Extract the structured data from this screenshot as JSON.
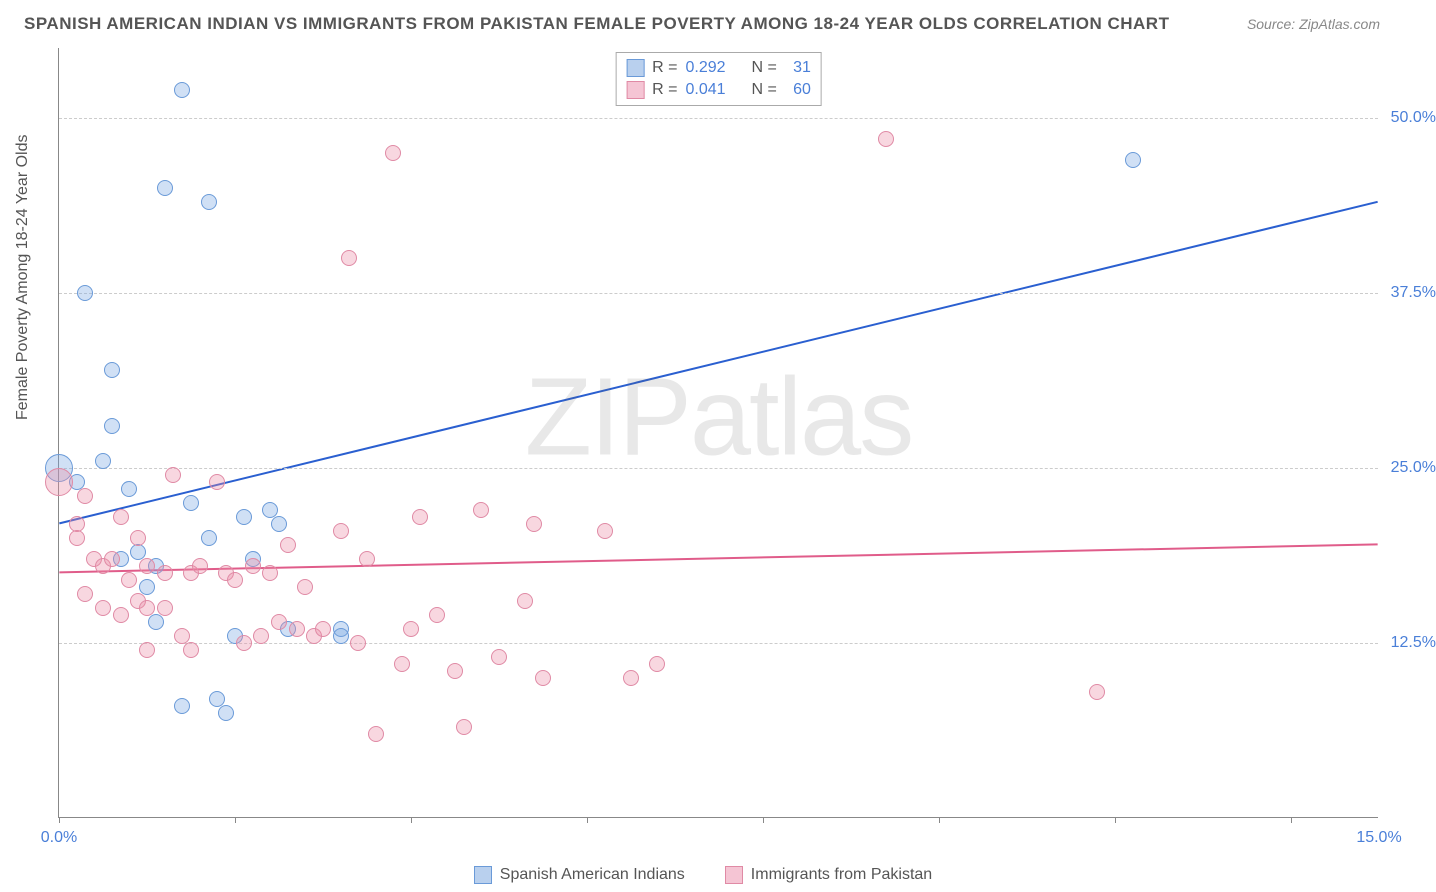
{
  "title": "SPANISH AMERICAN INDIAN VS IMMIGRANTS FROM PAKISTAN FEMALE POVERTY AMONG 18-24 YEAR OLDS CORRELATION CHART",
  "source": "Source: ZipAtlas.com",
  "watermark": {
    "part1": "ZIP",
    "part2": "atlas"
  },
  "y_axis_label": "Female Poverty Among 18-24 Year Olds",
  "chart": {
    "type": "scatter",
    "background_color": "#ffffff",
    "grid_color": "#cccccc",
    "xlim": [
      0,
      15
    ],
    "ylim": [
      0,
      55
    ],
    "x_ticks": [
      0,
      2,
      4,
      6,
      8,
      10,
      12,
      14
    ],
    "x_tick_labels": {
      "0": "0.0%",
      "15": "15.0%"
    },
    "y_gridlines": [
      12.5,
      25.0,
      37.5,
      50.0
    ],
    "y_tick_labels": [
      "12.5%",
      "25.0%",
      "37.5%",
      "50.0%"
    ],
    "y_tick_color": "#4a7fd8",
    "x_tick_color_left": "#4a7fd8",
    "x_tick_color_right": "#4a7fd8",
    "marker_radius": 8,
    "marker_radius_large": 14,
    "line_width": 2
  },
  "series": [
    {
      "name": "Spanish American Indians",
      "color_fill": "rgba(120,165,225,0.35)",
      "color_stroke": "#6a9ad8",
      "line_color": "#2a5fd0",
      "legend_fill": "#b9d0ee",
      "legend_stroke": "#6a9ad8",
      "R": "0.292",
      "N": "31",
      "trend": {
        "x1": 0,
        "y1": 21.0,
        "x2": 15,
        "y2": 44.0
      },
      "points": [
        {
          "x": 0.0,
          "y": 25.0,
          "r": 14
        },
        {
          "x": 0.2,
          "y": 24.0
        },
        {
          "x": 0.3,
          "y": 37.5
        },
        {
          "x": 0.5,
          "y": 25.5
        },
        {
          "x": 0.6,
          "y": 32.0
        },
        {
          "x": 0.6,
          "y": 28.0
        },
        {
          "x": 0.7,
          "y": 18.5
        },
        {
          "x": 0.8,
          "y": 23.5
        },
        {
          "x": 0.9,
          "y": 19.0
        },
        {
          "x": 1.0,
          "y": 16.5
        },
        {
          "x": 1.1,
          "y": 18.0
        },
        {
          "x": 1.1,
          "y": 14.0
        },
        {
          "x": 1.2,
          "y": 45.0
        },
        {
          "x": 1.4,
          "y": 52.0
        },
        {
          "x": 1.4,
          "y": 8.0
        },
        {
          "x": 1.5,
          "y": 22.5
        },
        {
          "x": 1.7,
          "y": 44.0
        },
        {
          "x": 1.7,
          "y": 20.0
        },
        {
          "x": 1.8,
          "y": 8.5
        },
        {
          "x": 1.9,
          "y": 7.5
        },
        {
          "x": 2.0,
          "y": 13.0
        },
        {
          "x": 2.1,
          "y": 21.5
        },
        {
          "x": 2.2,
          "y": 18.5
        },
        {
          "x": 2.4,
          "y": 22.0
        },
        {
          "x": 2.5,
          "y": 21.0
        },
        {
          "x": 2.6,
          "y": 13.5
        },
        {
          "x": 3.2,
          "y": 13.5
        },
        {
          "x": 3.2,
          "y": 13.0
        },
        {
          "x": 12.2,
          "y": 47.0
        }
      ]
    },
    {
      "name": "Immigrants from Pakistan",
      "color_fill": "rgba(235,140,165,0.35)",
      "color_stroke": "#e08aa5",
      "line_color": "#e05c8a",
      "legend_fill": "#f5c5d4",
      "legend_stroke": "#e08aa5",
      "R": "0.041",
      "N": "60",
      "trend": {
        "x1": 0,
        "y1": 17.5,
        "x2": 15,
        "y2": 19.5
      },
      "points": [
        {
          "x": 0.0,
          "y": 24.0,
          "r": 14
        },
        {
          "x": 0.2,
          "y": 21.0
        },
        {
          "x": 0.2,
          "y": 20.0
        },
        {
          "x": 0.3,
          "y": 23.0
        },
        {
          "x": 0.3,
          "y": 16.0
        },
        {
          "x": 0.4,
          "y": 18.5
        },
        {
          "x": 0.5,
          "y": 18.0
        },
        {
          "x": 0.5,
          "y": 15.0
        },
        {
          "x": 0.6,
          "y": 18.5
        },
        {
          "x": 0.7,
          "y": 21.5
        },
        {
          "x": 0.7,
          "y": 14.5
        },
        {
          "x": 0.8,
          "y": 17.0
        },
        {
          "x": 0.9,
          "y": 20.0
        },
        {
          "x": 0.9,
          "y": 15.5
        },
        {
          "x": 1.0,
          "y": 18.0
        },
        {
          "x": 1.0,
          "y": 15.0
        },
        {
          "x": 1.0,
          "y": 12.0
        },
        {
          "x": 1.2,
          "y": 17.5
        },
        {
          "x": 1.2,
          "y": 15.0
        },
        {
          "x": 1.3,
          "y": 24.5
        },
        {
          "x": 1.4,
          "y": 13.0
        },
        {
          "x": 1.5,
          "y": 17.5
        },
        {
          "x": 1.5,
          "y": 12.0
        },
        {
          "x": 1.6,
          "y": 18.0
        },
        {
          "x": 1.8,
          "y": 24.0
        },
        {
          "x": 1.9,
          "y": 17.5
        },
        {
          "x": 2.0,
          "y": 17.0
        },
        {
          "x": 2.1,
          "y": 12.5
        },
        {
          "x": 2.2,
          "y": 18.0
        },
        {
          "x": 2.3,
          "y": 13.0
        },
        {
          "x": 2.4,
          "y": 17.5
        },
        {
          "x": 2.5,
          "y": 14.0
        },
        {
          "x": 2.6,
          "y": 19.5
        },
        {
          "x": 2.7,
          "y": 13.5
        },
        {
          "x": 2.8,
          "y": 16.5
        },
        {
          "x": 2.9,
          "y": 13.0
        },
        {
          "x": 3.0,
          "y": 13.5
        },
        {
          "x": 3.2,
          "y": 20.5
        },
        {
          "x": 3.3,
          "y": 40.0
        },
        {
          "x": 3.4,
          "y": 12.5
        },
        {
          "x": 3.5,
          "y": 18.5
        },
        {
          "x": 3.6,
          "y": 6.0
        },
        {
          "x": 3.8,
          "y": 47.5
        },
        {
          "x": 3.9,
          "y": 11.0
        },
        {
          "x": 4.0,
          "y": 13.5
        },
        {
          "x": 4.1,
          "y": 21.5
        },
        {
          "x": 4.3,
          "y": 14.5
        },
        {
          "x": 4.5,
          "y": 10.5
        },
        {
          "x": 4.6,
          "y": 6.5
        },
        {
          "x": 4.8,
          "y": 22.0
        },
        {
          "x": 5.0,
          "y": 11.5
        },
        {
          "x": 5.3,
          "y": 15.5
        },
        {
          "x": 5.4,
          "y": 21.0
        },
        {
          "x": 5.5,
          "y": 10.0
        },
        {
          "x": 6.2,
          "y": 20.5
        },
        {
          "x": 6.5,
          "y": 10.0
        },
        {
          "x": 6.8,
          "y": 11.0
        },
        {
          "x": 9.4,
          "y": 48.5
        },
        {
          "x": 11.8,
          "y": 9.0
        }
      ]
    }
  ],
  "legend_top": {
    "r_label": "R =",
    "n_label": "N ="
  },
  "legend_bottom_labels": [
    "Spanish American Indians",
    "Immigrants from Pakistan"
  ]
}
